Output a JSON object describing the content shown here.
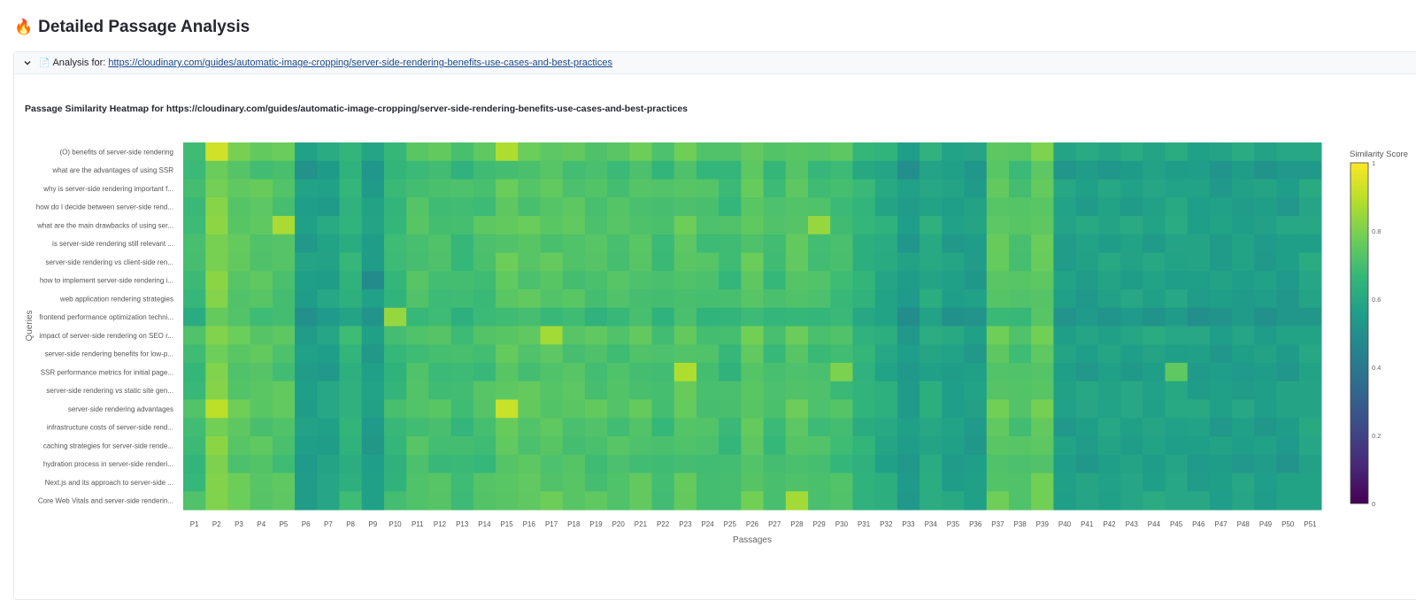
{
  "page": {
    "title": "Detailed Passage Analysis",
    "title_icon": "fire-icon",
    "expander": {
      "label_prefix": "Analysis for:",
      "icon": "page-icon",
      "url": "https://cloudinary.com/guides/automatic-image-cropping/server-side-rendering-benefits-use-cases-and-best-practices"
    }
  },
  "chart_data": {
    "type": "heatmap",
    "title": "Passage Similarity Heatmap for https://cloudinary.com/guides/automatic-image-cropping/server-side-rendering-benefits-use-cases-and-best-practices",
    "xlabel": "Passages",
    "ylabel": "Queries",
    "colorbar_title": "Similarity Score",
    "colorscale": "viridis",
    "zmin": 0,
    "zmax": 1,
    "colorbar_ticks": [
      "0",
      "0.2",
      "0.4",
      "0.6",
      "0.8",
      "1"
    ],
    "x": [
      "P1",
      "P2",
      "P3",
      "P4",
      "P5",
      "P6",
      "P7",
      "P8",
      "P9",
      "P10",
      "P11",
      "P12",
      "P13",
      "P14",
      "P15",
      "P16",
      "P17",
      "P18",
      "P19",
      "P20",
      "P21",
      "P22",
      "P23",
      "P24",
      "P25",
      "P26",
      "P27",
      "P28",
      "P29",
      "P30",
      "P31",
      "P32",
      "P33",
      "P34",
      "P35",
      "P36",
      "P37",
      "P38",
      "P39",
      "P40",
      "P41",
      "P42",
      "P43",
      "P44",
      "P45",
      "P46",
      "P47",
      "P48",
      "P49",
      "P50",
      "P51"
    ],
    "y": [
      "(O) benefits of server-side rendering",
      "what are the advantages of using SSR",
      "why is server-side rendering important f...",
      "how do I decide between server-side rend...",
      "what are the main drawbacks of using ser...",
      "is server-side rendering still relevant ...",
      "server-side rendering vs client-side ren...",
      "how to implement server-side rendering i...",
      "web application rendering strategies",
      "frontend performance optimization techni...",
      "impact of server-side rendering on SEO r...",
      "server-side rendering benefits for low-p...",
      "SSR performance metrics for initial page...",
      "server-side rendering vs static site gen...",
      "server-side rendering advantages",
      "infrastructure costs of server-side rend...",
      "caching strategies for server-side rende...",
      "hydration process in server-side renderi...",
      "Next.js and its approach to server-side ...",
      "Core Web Vitals and server-side renderin..."
    ],
    "column_base": [
      0.68,
      0.8,
      0.74,
      0.73,
      0.72,
      0.55,
      0.57,
      0.64,
      0.55,
      0.66,
      0.71,
      0.7,
      0.68,
      0.7,
      0.74,
      0.73,
      0.73,
      0.72,
      0.71,
      0.71,
      0.72,
      0.69,
      0.73,
      0.7,
      0.68,
      0.74,
      0.69,
      0.73,
      0.7,
      0.69,
      0.64,
      0.6,
      0.54,
      0.6,
      0.56,
      0.55,
      0.74,
      0.71,
      0.75,
      0.56,
      0.56,
      0.57,
      0.57,
      0.57,
      0.58,
      0.56,
      0.55,
      0.56,
      0.55,
      0.55,
      0.58
    ],
    "row_offset": [
      0.03,
      -0.02,
      0.01,
      0.0,
      0.02,
      0.0,
      0.01,
      0.0,
      0.0,
      -0.04,
      0.02,
      0.0,
      -0.01,
      0.01,
      0.02,
      0.0,
      0.0,
      -0.01,
      0.01,
      0.02
    ],
    "highlights": [
      {
        "query": 0,
        "passage": 1,
        "value": 0.93
      },
      {
        "query": 0,
        "passage": 14,
        "value": 0.88
      },
      {
        "query": 14,
        "passage": 14,
        "value": 0.92
      },
      {
        "query": 10,
        "passage": 16,
        "value": 0.86
      },
      {
        "query": 12,
        "passage": 22,
        "value": 0.88
      },
      {
        "query": 4,
        "passage": 4,
        "value": 0.87
      },
      {
        "query": 14,
        "passage": 1,
        "value": 0.9
      },
      {
        "query": 9,
        "passage": 9,
        "value": 0.84
      },
      {
        "query": 19,
        "passage": 27,
        "value": 0.86
      },
      {
        "query": 4,
        "passage": 28,
        "value": 0.84
      },
      {
        "query": 7,
        "passage": 8,
        "value": 0.48
      },
      {
        "query": 12,
        "passage": 29,
        "value": 0.8
      },
      {
        "query": 12,
        "passage": 44,
        "value": 0.75
      }
    ]
  }
}
